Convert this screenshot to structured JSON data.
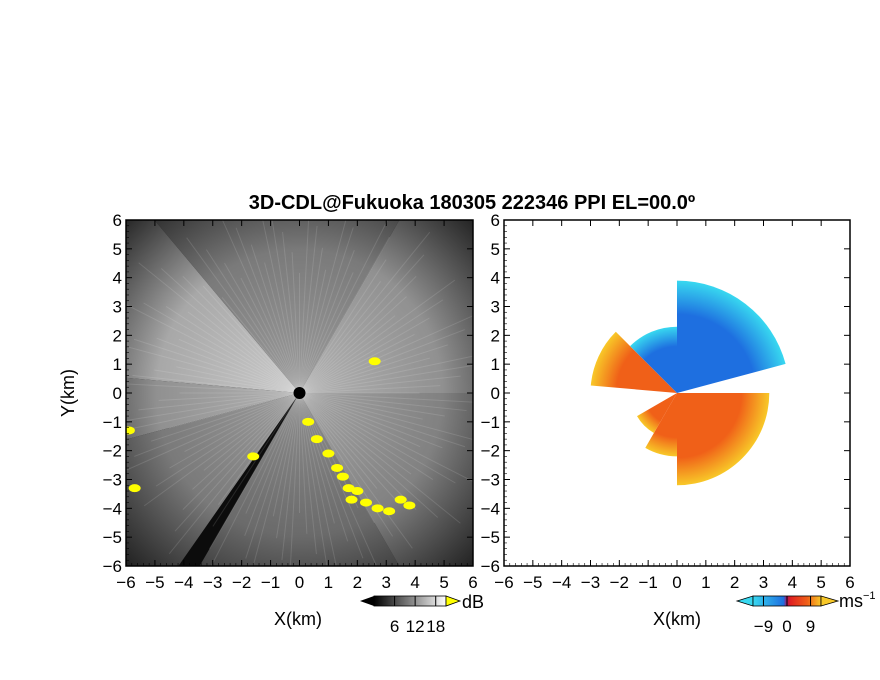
{
  "chart_data": {
    "title": "3D-CDL@Fukuoka 180305 222346 PPI EL=00.0º",
    "panels": [
      {
        "type": "heatmap",
        "field": "signal intensity",
        "xlabel": "X(km)",
        "ylabel": "Y(km)",
        "xlim": [
          -6,
          6
        ],
        "ylim": [
          -6,
          6
        ],
        "xticks": [
          "-6",
          "-5",
          "-4",
          "-3",
          "-2",
          "-1",
          "0",
          "1",
          "2",
          "3",
          "4",
          "5",
          "6"
        ],
        "yticks": [
          "-6",
          "-5",
          "-4",
          "-3",
          "-2",
          "-1",
          "0",
          "1",
          "2",
          "3",
          "4",
          "5",
          "6"
        ],
        "colorbar": {
          "unit": "dB",
          "ticks": [
            "6",
            "12",
            "18"
          ],
          "tick_values": [
            6,
            12,
            18
          ],
          "range": [
            0,
            21
          ],
          "colors": {
            "low": "#000000",
            "high": "#ffffff",
            "overflow": "#ffff00"
          }
        },
        "sectors": [
          {
            "from_deg": 130,
            "to_deg": 175,
            "level": 0.85
          },
          {
            "from_deg": 175,
            "to_deg": 195,
            "level": 0.7
          },
          {
            "from_deg": 195,
            "to_deg": 235,
            "level": 0.55
          },
          {
            "from_deg": 240,
            "to_deg": 300,
            "level": 0.45
          },
          {
            "from_deg": 300,
            "to_deg": 360,
            "level": 0.6
          },
          {
            "from_deg": 0,
            "to_deg": 60,
            "level": 0.7
          },
          {
            "from_deg": 60,
            "to_deg": 130,
            "level": 0.55
          }
        ],
        "overflow_echoes": [
          {
            "x": 0.3,
            "y": -1.0
          },
          {
            "x": 0.6,
            "y": -1.6
          },
          {
            "x": 1.0,
            "y": -2.1
          },
          {
            "x": 1.3,
            "y": -2.6
          },
          {
            "x": 1.5,
            "y": -2.9
          },
          {
            "x": 1.7,
            "y": -3.3
          },
          {
            "x": 1.8,
            "y": -3.7
          },
          {
            "x": 2.0,
            "y": -3.4
          },
          {
            "x": 2.3,
            "y": -3.8
          },
          {
            "x": 2.7,
            "y": -4.0
          },
          {
            "x": 3.1,
            "y": -4.1
          },
          {
            "x": 3.5,
            "y": -3.7
          },
          {
            "x": 3.8,
            "y": -3.9
          },
          {
            "x": -5.9,
            "y": -1.3
          },
          {
            "x": -5.7,
            "y": -3.3
          },
          {
            "x": -1.6,
            "y": -2.2
          },
          {
            "x": 2.6,
            "y": 1.1
          }
        ]
      },
      {
        "type": "heatmap",
        "field": "radial velocity",
        "xlabel": "X(km)",
        "xlim": [
          -6,
          6
        ],
        "ylim": [
          -6,
          6
        ],
        "xticks": [
          "-6",
          "-5",
          "-4",
          "-3",
          "-2",
          "-1",
          "0",
          "1",
          "2",
          "3",
          "4",
          "5",
          "6"
        ],
        "yticks": [
          "-6",
          "-5",
          "-4",
          "-3",
          "-2",
          "-1",
          "0",
          "1",
          "2",
          "3",
          "4",
          "5",
          "6"
        ],
        "colorbar": {
          "unit": "ms",
          "unit_exponent": "−1",
          "ticks": [
            "−9",
            "0",
            "9"
          ],
          "tick_values": [
            -9,
            0,
            9
          ],
          "range": [
            -13,
            13
          ],
          "colors": {
            "neg": "#1e6fe0",
            "neg_light": "#38d8f0",
            "zero": "#b01060",
            "pos": "#f06018",
            "pos_light": "#f8c828"
          }
        },
        "sectors": [
          {
            "from_deg": 135,
            "to_deg": 175,
            "velocity": 7,
            "r_max": 3.0
          },
          {
            "from_deg": 15,
            "to_deg": 90,
            "velocity": -7,
            "r_max": 3.9
          },
          {
            "from_deg": 90,
            "to_deg": 135,
            "velocity": -5,
            "r_max": 2.3
          },
          {
            "from_deg": 270,
            "to_deg": 360,
            "velocity": 5,
            "r_max": 3.2
          },
          {
            "from_deg": 240,
            "to_deg": 270,
            "velocity": 6,
            "r_max": 2.2
          },
          {
            "from_deg": 210,
            "to_deg": 240,
            "velocity": 4,
            "r_max": 1.6
          }
        ]
      }
    ]
  }
}
